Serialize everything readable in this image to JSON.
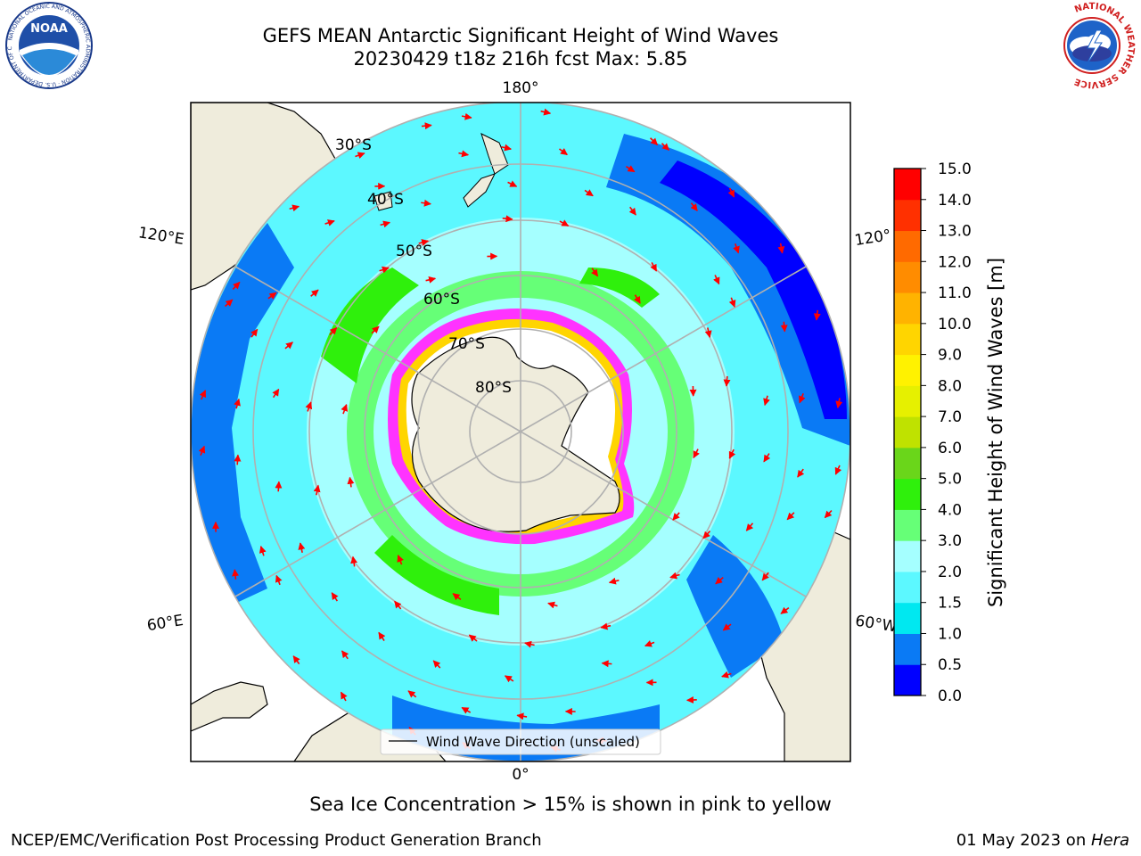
{
  "title_line1": "GEFS MEAN Antarctic Significant Height of Wind Waves",
  "title_line2": "20230429 t18z 216h fcst   Max: 5.85",
  "noaa_logo_text": "NOAA",
  "noaa_ring_text": "NATIONAL OCEANIC AND ATMOSPHERIC ADMINISTRATION · U.S. DEPARTMENT OF COMMERCE",
  "nws_ring_text": "NATIONAL WEATHER SERVICE",
  "map": {
    "longitude_labels": {
      "top": "180°",
      "bottom": "0°",
      "left_upper": "120°E",
      "left_lower": "60°E",
      "right_upper": "120°",
      "right_lower": "60°W"
    },
    "latitude_labels": [
      "30°S",
      "40°S",
      "50°S",
      "60°S",
      "70°S",
      "80°S"
    ],
    "legend_label": "Wind Wave Direction (unscaled)"
  },
  "colorbar": {
    "label": "Significant Height of Wind Waves [m]",
    "ticks": [
      "0.0",
      "0.5",
      "1.0",
      "1.5",
      "2.0",
      "3.0",
      "4.0",
      "5.0",
      "6.0",
      "7.0",
      "8.0",
      "9.0",
      "10.0",
      "11.0",
      "12.0",
      "13.0",
      "14.0",
      "15.0"
    ],
    "colors": [
      "#0000ff",
      "#0a7af5",
      "#00e8f0",
      "#5cf8ff",
      "#a5ffff",
      "#66ff77",
      "#2ff00c",
      "#6ad61a",
      "#bfe200",
      "#e6f000",
      "#fff200",
      "#ffd500",
      "#ffb300",
      "#ff8c00",
      "#ff6a00",
      "#ff3000",
      "#ff0000"
    ]
  },
  "sea_ice_note": "Sea Ice Concentration > 15% is shown in pink to yellow",
  "credit_left": "NCEP/EMC/Verification Post Processing Product Generation Branch",
  "credit_date": "01 May 2023 on ",
  "credit_machine": "Hera",
  "land_color": "#efecdc",
  "arrow_color": "#ff0000"
}
